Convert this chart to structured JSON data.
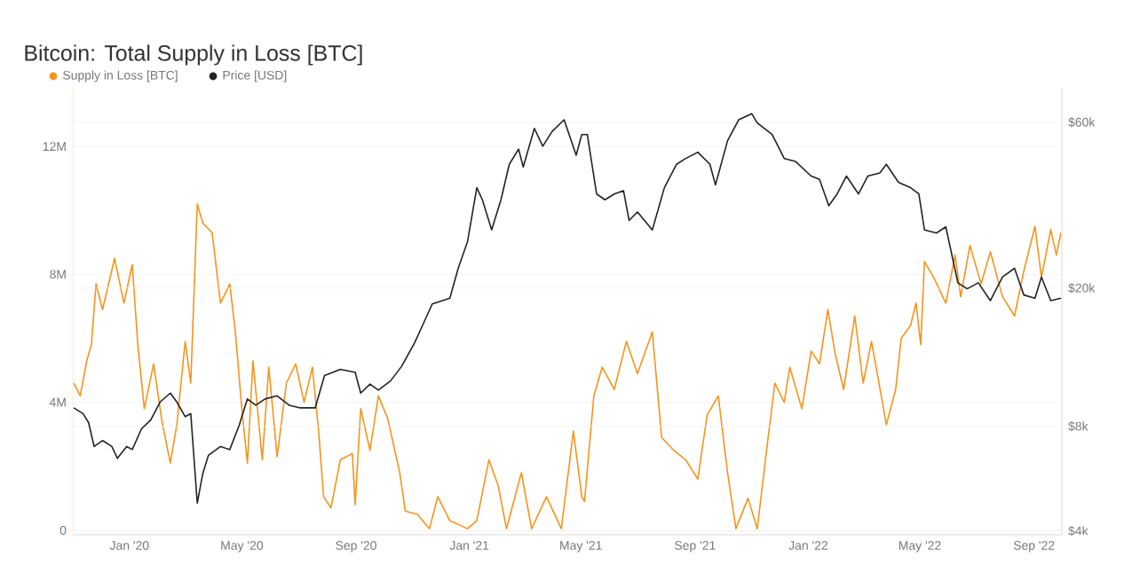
{
  "chart_data": {
    "type": "line",
    "title": "Bitcoin: Total Supply in Loss [BTC]",
    "legend": "top left",
    "grid": "y",
    "log": "y2",
    "xlim": [
      "2019-11-01",
      "2022-10-01"
    ],
    "xticks": [
      {
        "value": "2020-01-01",
        "label": "Jan '20"
      },
      {
        "value": "2020-05-01",
        "label": "May '20"
      },
      {
        "value": "2020-09-01",
        "label": "Sep '20"
      },
      {
        "value": "2021-01-01",
        "label": "Jan '21"
      },
      {
        "value": "2021-05-01",
        "label": "May '21"
      },
      {
        "value": "2021-09-01",
        "label": "Sep '21"
      },
      {
        "value": "2022-01-01",
        "label": "Jan '22"
      },
      {
        "value": "2022-05-01",
        "label": "May '22"
      },
      {
        "value": "2022-09-01",
        "label": "Sep '22"
      }
    ],
    "ylim": [
      -140000,
      13830000
    ],
    "yticks": [
      0,
      {
        "value": 4000000,
        "label": "4M"
      },
      {
        "value": 8000000,
        "label": "8M"
      },
      {
        "value": 12000000,
        "label": "12M"
      }
    ],
    "y2lim": [
      3900,
      75400
    ],
    "y2ticks": [
      {
        "value": 4000,
        "label": "$4k"
      },
      {
        "value": 8000,
        "label": "$8k"
      },
      {
        "value": 20000,
        "label": "$20k"
      },
      {
        "value": 60000,
        "label": "$60k"
      }
    ],
    "series": [
      {
        "name": "Supply in Loss [BTC]",
        "color": "#f7931a",
        "x": [
          "2019-11-02",
          "2019-11-09",
          "2019-11-16",
          "2019-11-21",
          "2019-11-26",
          "2019-12-03",
          "2019-12-16",
          "2019-12-26",
          "2020-01-04",
          "2020-01-10",
          "2020-01-17",
          "2020-01-27",
          "2020-02-05",
          "2020-02-14",
          "2020-02-21",
          "2020-03-01",
          "2020-03-07",
          "2020-03-14",
          "2020-03-20",
          "2020-03-30",
          "2020-04-08",
          "2020-04-18",
          "2020-04-24",
          "2020-05-01",
          "2020-05-07",
          "2020-05-13",
          "2020-05-23",
          "2020-05-30",
          "2020-06-08",
          "2020-06-18",
          "2020-06-28",
          "2020-07-07",
          "2020-07-16",
          "2020-07-23",
          "2020-07-28",
          "2020-08-05",
          "2020-08-15",
          "2020-08-28",
          "2020-08-31",
          "2020-09-06",
          "2020-09-16",
          "2020-09-25",
          "2020-10-05",
          "2020-10-18",
          "2020-10-24",
          "2020-11-06",
          "2020-11-19",
          "2020-11-28",
          "2020-12-11",
          "2020-12-30",
          "2021-01-09",
          "2021-01-22",
          "2021-02-01",
          "2021-02-10",
          "2021-02-26",
          "2021-03-09",
          "2021-03-25",
          "2021-04-10",
          "2021-04-23",
          "2021-05-02",
          "2021-05-05",
          "2021-05-15",
          "2021-05-24",
          "2021-06-06",
          "2021-06-19",
          "2021-07-01",
          "2021-07-17",
          "2021-07-27",
          "2021-08-09",
          "2021-08-22",
          "2021-09-04",
          "2021-09-14",
          "2021-09-26",
          "2021-10-06",
          "2021-10-15",
          "2021-10-28",
          "2021-11-07",
          "2021-11-17",
          "2021-11-26",
          "2021-12-06",
          "2021-12-12",
          "2021-12-25",
          "2022-01-04",
          "2022-01-13",
          "2022-01-22",
          "2022-01-30",
          "2022-02-08",
          "2022-02-20",
          "2022-03-01",
          "2022-03-10",
          "2022-03-23",
          "2022-03-26",
          "2022-04-05",
          "2022-04-11",
          "2022-04-21",
          "2022-04-27",
          "2022-05-02",
          "2022-05-06",
          "2022-05-16",
          "2022-05-29",
          "2022-06-08",
          "2022-06-14",
          "2022-06-24",
          "2022-07-06",
          "2022-07-16",
          "2022-07-29",
          "2022-08-11",
          "2022-08-21",
          "2022-09-02",
          "2022-09-09",
          "2022-09-19",
          "2022-09-25",
          "2022-09-30"
        ],
        "values": [
          4600000,
          4200000,
          5300000,
          5800000,
          7700000,
          6900000,
          8500000,
          7100000,
          8300000,
          5800000,
          3800000,
          5200000,
          3400000,
          2100000,
          3300000,
          5900000,
          4600000,
          10200000,
          9600000,
          9300000,
          7100000,
          7700000,
          6200000,
          3800000,
          2100000,
          5300000,
          2200000,
          5100000,
          2300000,
          4600000,
          5200000,
          4000000,
          5100000,
          3000000,
          1050000,
          700000,
          2200000,
          2400000,
          800000,
          3800000,
          2500000,
          4200000,
          3500000,
          1800000,
          600000,
          500000,
          50000,
          1050000,
          300000,
          50000,
          300000,
          2200000,
          1400000,
          50000,
          1800000,
          50000,
          1050000,
          50000,
          3100000,
          1050000,
          900000,
          4200000,
          5100000,
          4400000,
          5900000,
          4900000,
          6200000,
          2900000,
          2500000,
          2200000,
          1600000,
          3600000,
          4200000,
          1800000,
          50000,
          1000000,
          50000,
          2500000,
          4600000,
          4000000,
          5100000,
          3800000,
          5600000,
          5200000,
          6900000,
          5500000,
          4400000,
          6700000,
          4600000,
          5900000,
          3800000,
          3300000,
          4400000,
          6000000,
          6400000,
          7100000,
          5800000,
          8400000,
          7900000,
          7100000,
          8600000,
          7300000,
          8900000,
          7700000,
          8700000,
          7300000,
          6700000,
          8100000,
          9500000,
          7900000,
          9400000,
          8600000,
          9300000
        ]
      },
      {
        "name": "Price [USD]",
        "color": "#222222",
        "axis": "y2",
        "x": [
          "2019-11-02",
          "2019-11-12",
          "2019-11-18",
          "2019-11-24",
          "2019-12-03",
          "2019-12-13",
          "2019-12-19",
          "2019-12-29",
          "2020-01-04",
          "2020-01-14",
          "2020-01-24",
          "2020-02-03",
          "2020-02-14",
          "2020-02-21",
          "2020-03-01",
          "2020-03-07",
          "2020-03-14",
          "2020-03-20",
          "2020-03-26",
          "2020-04-08",
          "2020-04-18",
          "2020-04-28",
          "2020-05-07",
          "2020-05-16",
          "2020-05-26",
          "2020-06-08",
          "2020-06-21",
          "2020-07-03",
          "2020-07-19",
          "2020-07-29",
          "2020-08-15",
          "2020-08-31",
          "2020-09-06",
          "2020-09-16",
          "2020-09-25",
          "2020-10-08",
          "2020-10-20",
          "2020-11-03",
          "2020-11-12",
          "2020-11-22",
          "2020-12-11",
          "2020-12-20",
          "2020-12-30",
          "2021-01-09",
          "2021-01-15",
          "2021-01-25",
          "2021-02-04",
          "2021-02-13",
          "2021-02-23",
          "2021-02-28",
          "2021-03-12",
          "2021-03-21",
          "2021-03-31",
          "2021-04-13",
          "2021-04-26",
          "2021-05-02",
          "2021-05-08",
          "2021-05-18",
          "2021-05-27",
          "2021-06-06",
          "2021-06-16",
          "2021-06-22",
          "2021-07-01",
          "2021-07-17",
          "2021-07-30",
          "2021-08-12",
          "2021-08-22",
          "2021-09-04",
          "2021-09-17",
          "2021-09-23",
          "2021-10-06",
          "2021-10-18",
          "2021-11-01",
          "2021-11-07",
          "2021-11-23",
          "2021-12-06",
          "2021-12-18",
          "2022-01-04",
          "2022-01-13",
          "2022-01-23",
          "2022-02-01",
          "2022-02-11",
          "2022-02-24",
          "2022-03-06",
          "2022-03-19",
          "2022-03-26",
          "2022-04-08",
          "2022-04-21",
          "2022-04-30",
          "2022-05-06",
          "2022-05-19",
          "2022-05-29",
          "2022-06-11",
          "2022-06-21",
          "2022-07-03",
          "2022-07-16",
          "2022-07-29",
          "2022-08-11",
          "2022-08-21",
          "2022-09-02",
          "2022-09-09",
          "2022-09-19",
          "2022-09-30"
        ],
        "values": [
          9040,
          8700,
          8200,
          7000,
          7280,
          7000,
          6470,
          7000,
          6860,
          7870,
          8350,
          9400,
          9970,
          9400,
          8530,
          8700,
          4810,
          5860,
          6600,
          7000,
          6860,
          8030,
          9590,
          9200,
          9590,
          9790,
          9200,
          9040,
          9040,
          11200,
          11670,
          11450,
          9970,
          10580,
          10170,
          10800,
          11900,
          13900,
          15700,
          18000,
          18700,
          22800,
          27200,
          38900,
          35900,
          29400,
          35900,
          45400,
          50200,
          44600,
          57600,
          51200,
          56400,
          61000,
          48200,
          55300,
          55300,
          37300,
          35900,
          37300,
          38100,
          31300,
          33100,
          29400,
          38900,
          45400,
          47200,
          49200,
          45400,
          39600,
          53100,
          61000,
          63500,
          59700,
          55300,
          47200,
          46300,
          42000,
          41100,
          34500,
          37300,
          42000,
          37300,
          42000,
          42900,
          45400,
          40300,
          38900,
          37300,
          29400,
          28800,
          30000,
          20700,
          19900,
          20700,
          18400,
          21500,
          22800,
          19100,
          18700,
          21500,
          18400,
          18700
        ]
      }
    ]
  }
}
